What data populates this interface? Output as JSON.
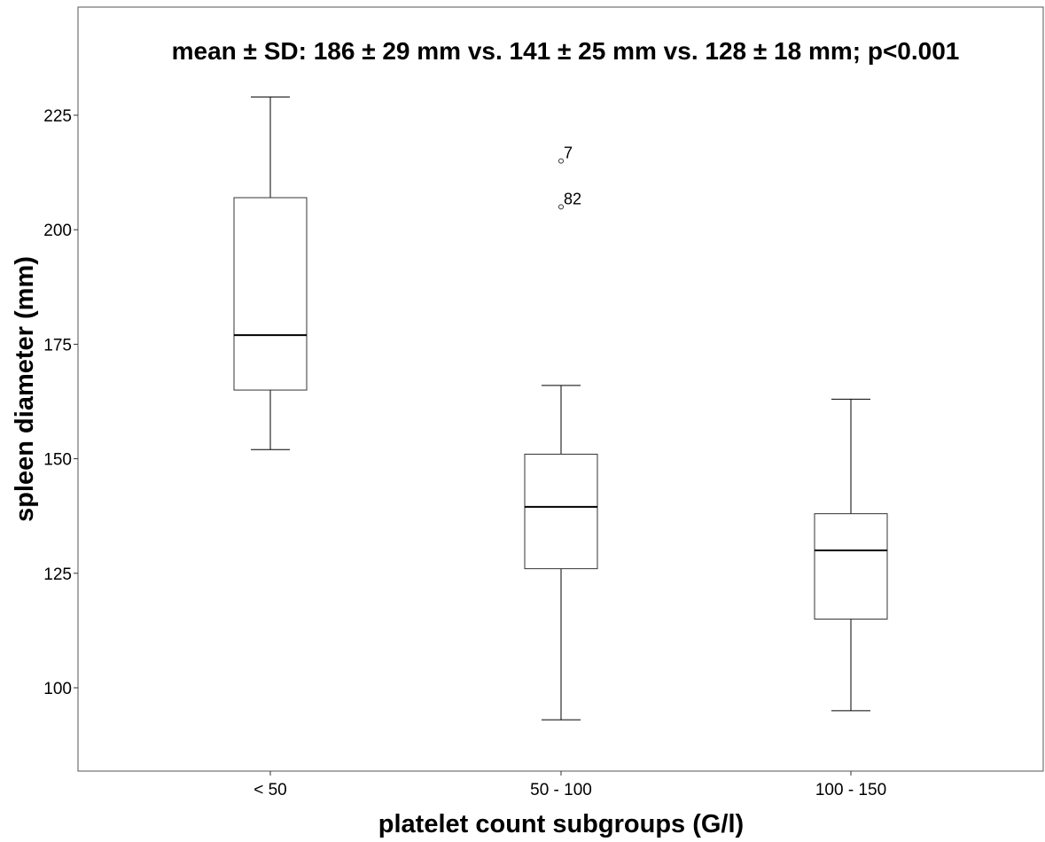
{
  "chart_data": {
    "type": "box",
    "annotation": "mean ± SD: 186 ± 29 mm vs. 141 ± 25 mm vs. 128 ± 18 mm; p<0.001",
    "xlabel": "platelet count subgroups (G/l)",
    "ylabel": "spleen diameter (mm)",
    "categories": [
      "< 50",
      "50 - 100",
      "100 - 150"
    ],
    "ylim": [
      82,
      243
    ],
    "yticks": [
      100,
      125,
      150,
      175,
      200,
      225
    ],
    "grid": false,
    "legend": "none",
    "boxes": [
      {
        "category": "< 50",
        "whisker_low": 152,
        "q1": 165,
        "median": 177,
        "q3": 207,
        "whisker_high": 229,
        "outliers": []
      },
      {
        "category": "50 - 100",
        "whisker_low": 93,
        "q1": 126,
        "median": 139.5,
        "q3": 151,
        "whisker_high": 166,
        "outliers": [
          {
            "value": 215,
            "label": "7"
          },
          {
            "value": 205,
            "label": "82"
          }
        ]
      },
      {
        "category": "100 - 150",
        "whisker_low": 95,
        "q1": 115,
        "median": 130,
        "q3": 138,
        "whisker_high": 163,
        "outliers": []
      }
    ]
  }
}
